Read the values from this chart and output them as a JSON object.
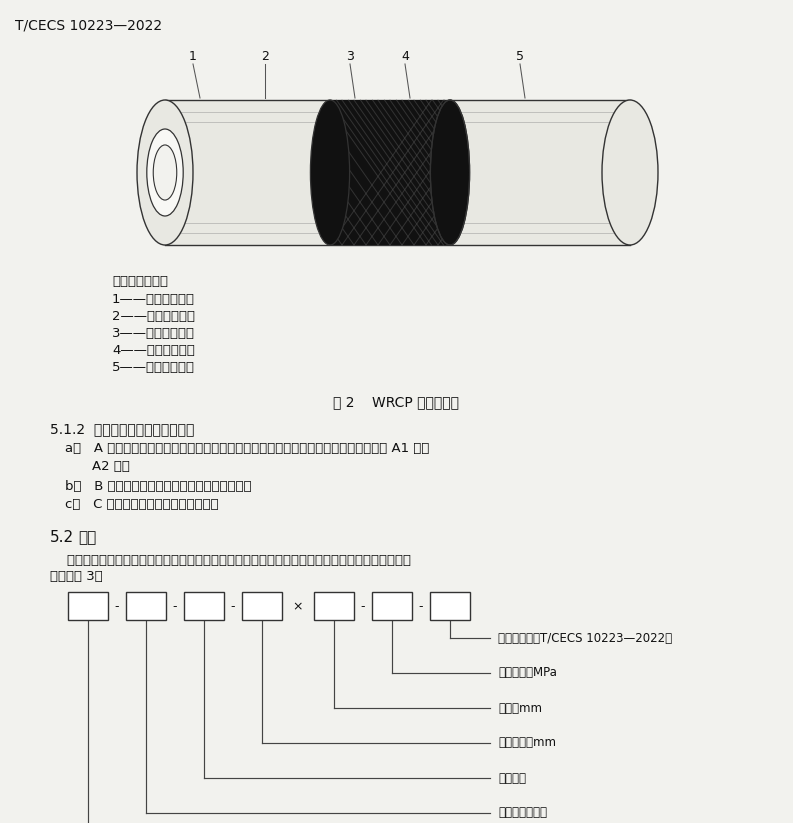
{
  "title": "T/CECS 10223—2022",
  "fig_caption": "图 2    WRCP 结构示意图",
  "legend_title": "标引序号说明：",
  "legend_items": [
    "1——内层聚乙烯；",
    "2——粘接树脂层；",
    "3——锆丝编织层；",
    "4——粘接树脂层；",
    "5——外层聚乙烯。"
  ],
  "section_512_title": "5.1.2  复合管按端部形式可分为：",
  "section_512_a1": "a）   A 型：端部为预制热熶对接接头的复合管，根据预制热熶对接接头的结构不同分为 A1 型和",
  "section_512_a2": "A2 型；",
  "section_512_b": "b）   B 型：端部为预制机械连接接头的复合管；",
  "section_512_c": "c）   C 型：端部无预制接头的复合管。",
  "section_52_title_num": "5.2",
  "section_52_title_text": "标记",
  "section_52_text1": "    复合管标记依次为产品名称、锆丝层成型结构、端部形式、公称外径、壁厅、公称压力和本文件编",
  "section_52_text2": "号，见图 3。",
  "diagram_labels": [
    "本文件编号（T/CECS 10223—2022）",
    "公称压力：MPa",
    "壁厅：mm",
    "公称外径：mm",
    "端部形式",
    "锆丝层成型结构"
  ],
  "bg_color": "#f2f2ee",
  "text_color": "#111111",
  "line_color": "#444444",
  "box_color": "#ffffff",
  "pipe_body_color": "#e8e8e2",
  "pipe_edge_color": "#333333",
  "braid_color": "#111111",
  "braid_texture_color": "#444444"
}
